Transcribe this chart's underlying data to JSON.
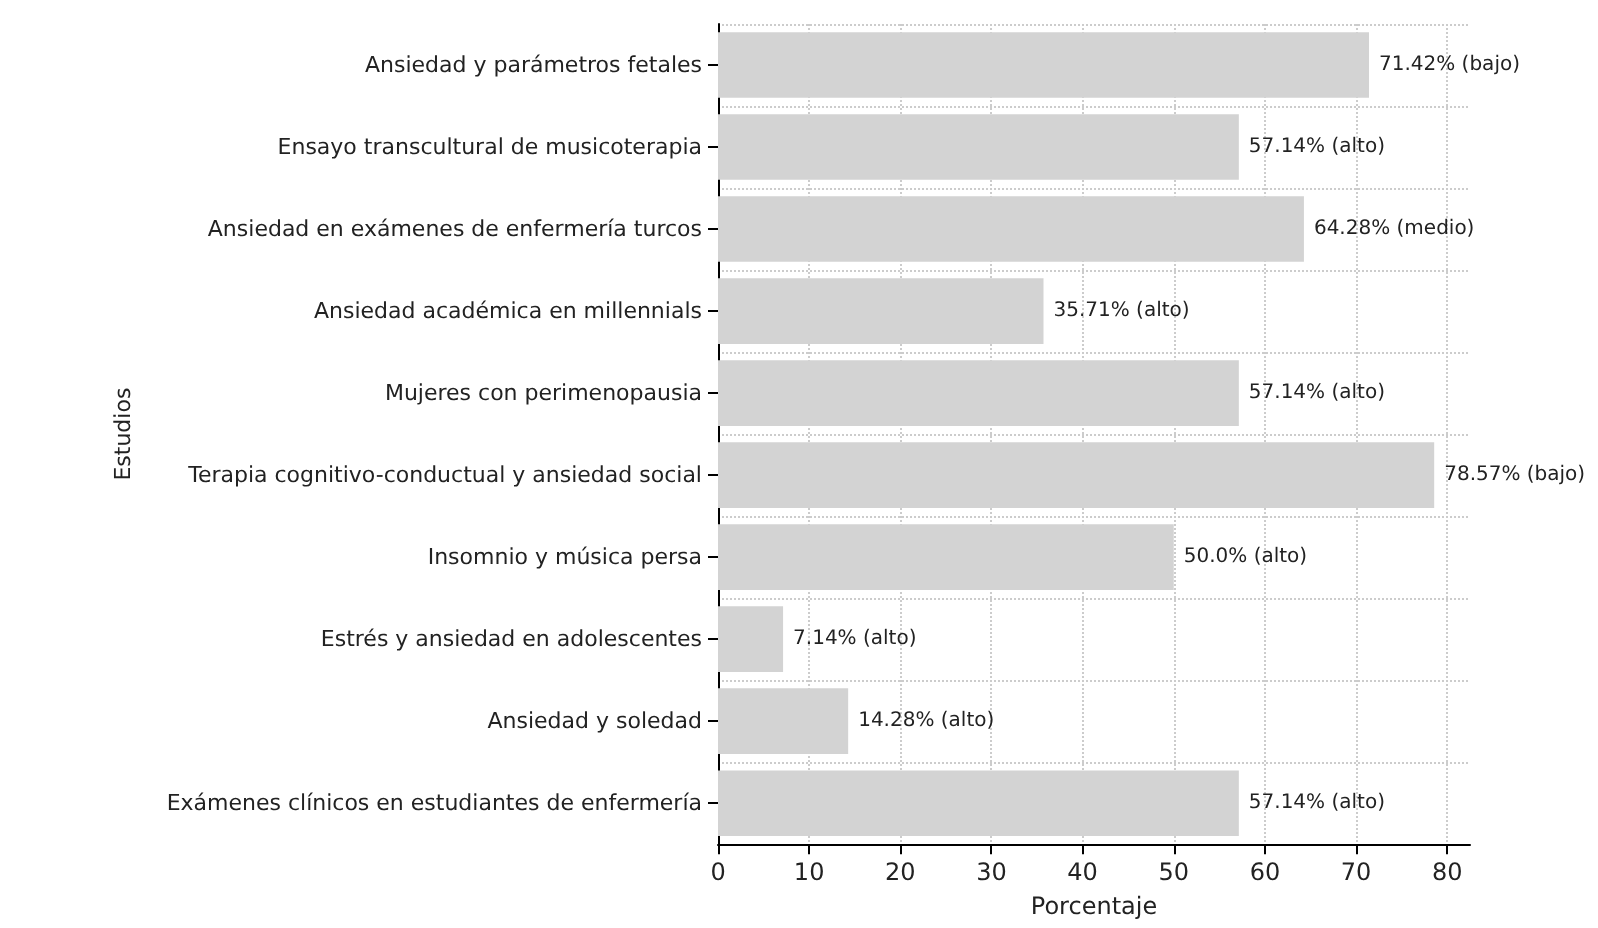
{
  "chart_data": {
    "type": "bar",
    "orientation": "horizontal",
    "xlabel": "Porcentaje",
    "ylabel": "Estudios",
    "categories": [
      "Ansiedad y parámetros fetales",
      "Ensayo transcultural de musicoterapia",
      "Ansiedad en exámenes de enfermería turcos",
      "Ansiedad académica en millennials",
      "Mujeres con perimenopausia",
      "Terapia cognitivo-conductual y ansiedad social",
      "Insomnio y música persa",
      "Estrés y ansiedad en adolescentes",
      "Ansiedad y soledad",
      "Exámenes clínicos en estudiantes de enfermería"
    ],
    "values": [
      71.42,
      57.14,
      64.28,
      35.71,
      57.14,
      78.57,
      50.0,
      7.14,
      14.28,
      57.14
    ],
    "value_labels": [
      "71.42% (bajo)",
      "57.14% (alto)",
      "64.28% (medio)",
      "35.71% (alto)",
      "57.14% (alto)",
      "78.57% (bajo)",
      "50.0% (alto)",
      "7.14% (alto)",
      "14.28% (alto)",
      "57.14% (alto)"
    ],
    "color": "#d3d3d3",
    "xlim": [
      0,
      82.5
    ],
    "xticks": [
      0,
      10,
      20,
      30,
      40,
      50,
      60,
      70,
      80
    ],
    "grid": true,
    "line_style": "dotted"
  }
}
